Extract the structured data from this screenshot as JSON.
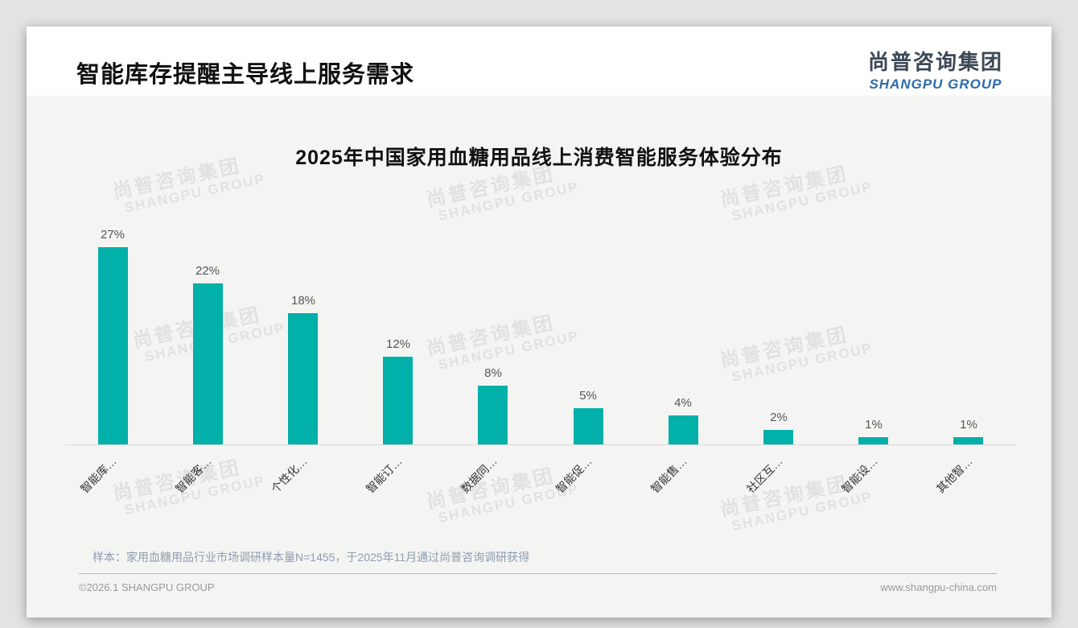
{
  "header": {
    "title": "智能库存提醒主导线上服务需求",
    "logo_cn": "尚普咨询集团",
    "logo_en": "SHANGPU GROUP"
  },
  "chart_data": {
    "type": "bar",
    "title": "2025年中国家用血糖用品线上消费智能服务体验分布",
    "categories": [
      "智能库…",
      "智能客…",
      "个性化…",
      "智能订…",
      "数据同…",
      "智能促…",
      "智能售…",
      "社区互…",
      "智能设…",
      "其他智…"
    ],
    "values": [
      27,
      22,
      18,
      12,
      8,
      5,
      4,
      2,
      1,
      1
    ],
    "value_labels": [
      "27%",
      "22%",
      "18%",
      "12%",
      "8%",
      "5%",
      "4%",
      "2%",
      "1%",
      "1%"
    ],
    "bar_color": "#00b0a9",
    "xlabel": "",
    "ylabel": "",
    "ylim": [
      0,
      30
    ],
    "grid": false,
    "legend": "none",
    "label_rotation_deg": 45
  },
  "watermark": {
    "line1": "尚普咨询集团",
    "line2": "SHANGPU GROUP"
  },
  "footnote": {
    "sample_text": "样本：家用血糖用品行业市场调研样本量N=1455，于2025年11月通过尚普咨询调研获得"
  },
  "footer": {
    "copyright": "©2026.1 SHANGPU GROUP",
    "website": "www.shangpu-china.com"
  }
}
